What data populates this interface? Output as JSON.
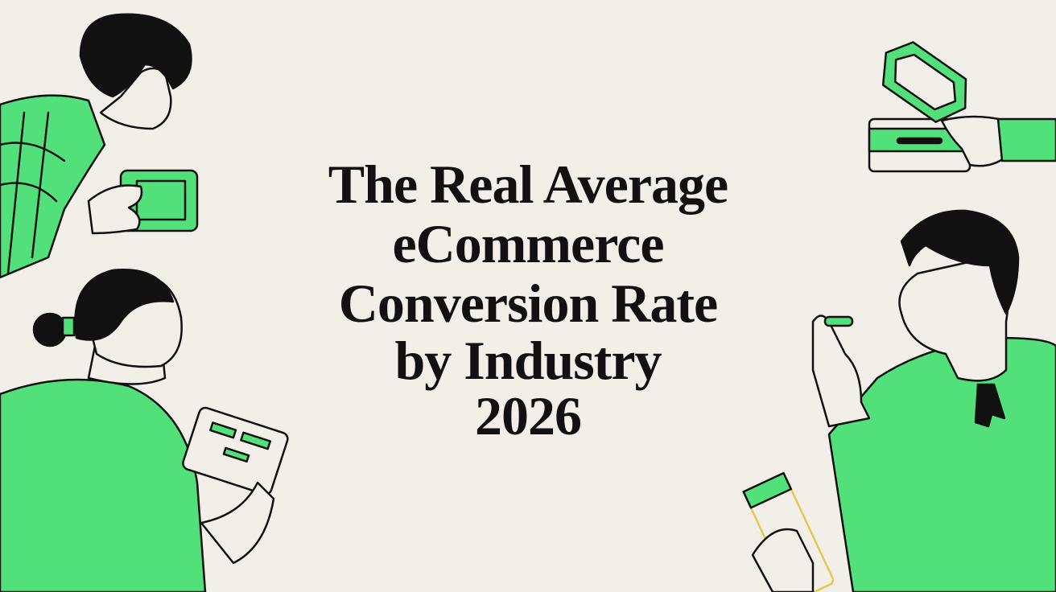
{
  "title": {
    "lines": [
      "The Real Average",
      "eCommerce",
      "Conversion Rate",
      "by Industry",
      "2026"
    ]
  }
}
